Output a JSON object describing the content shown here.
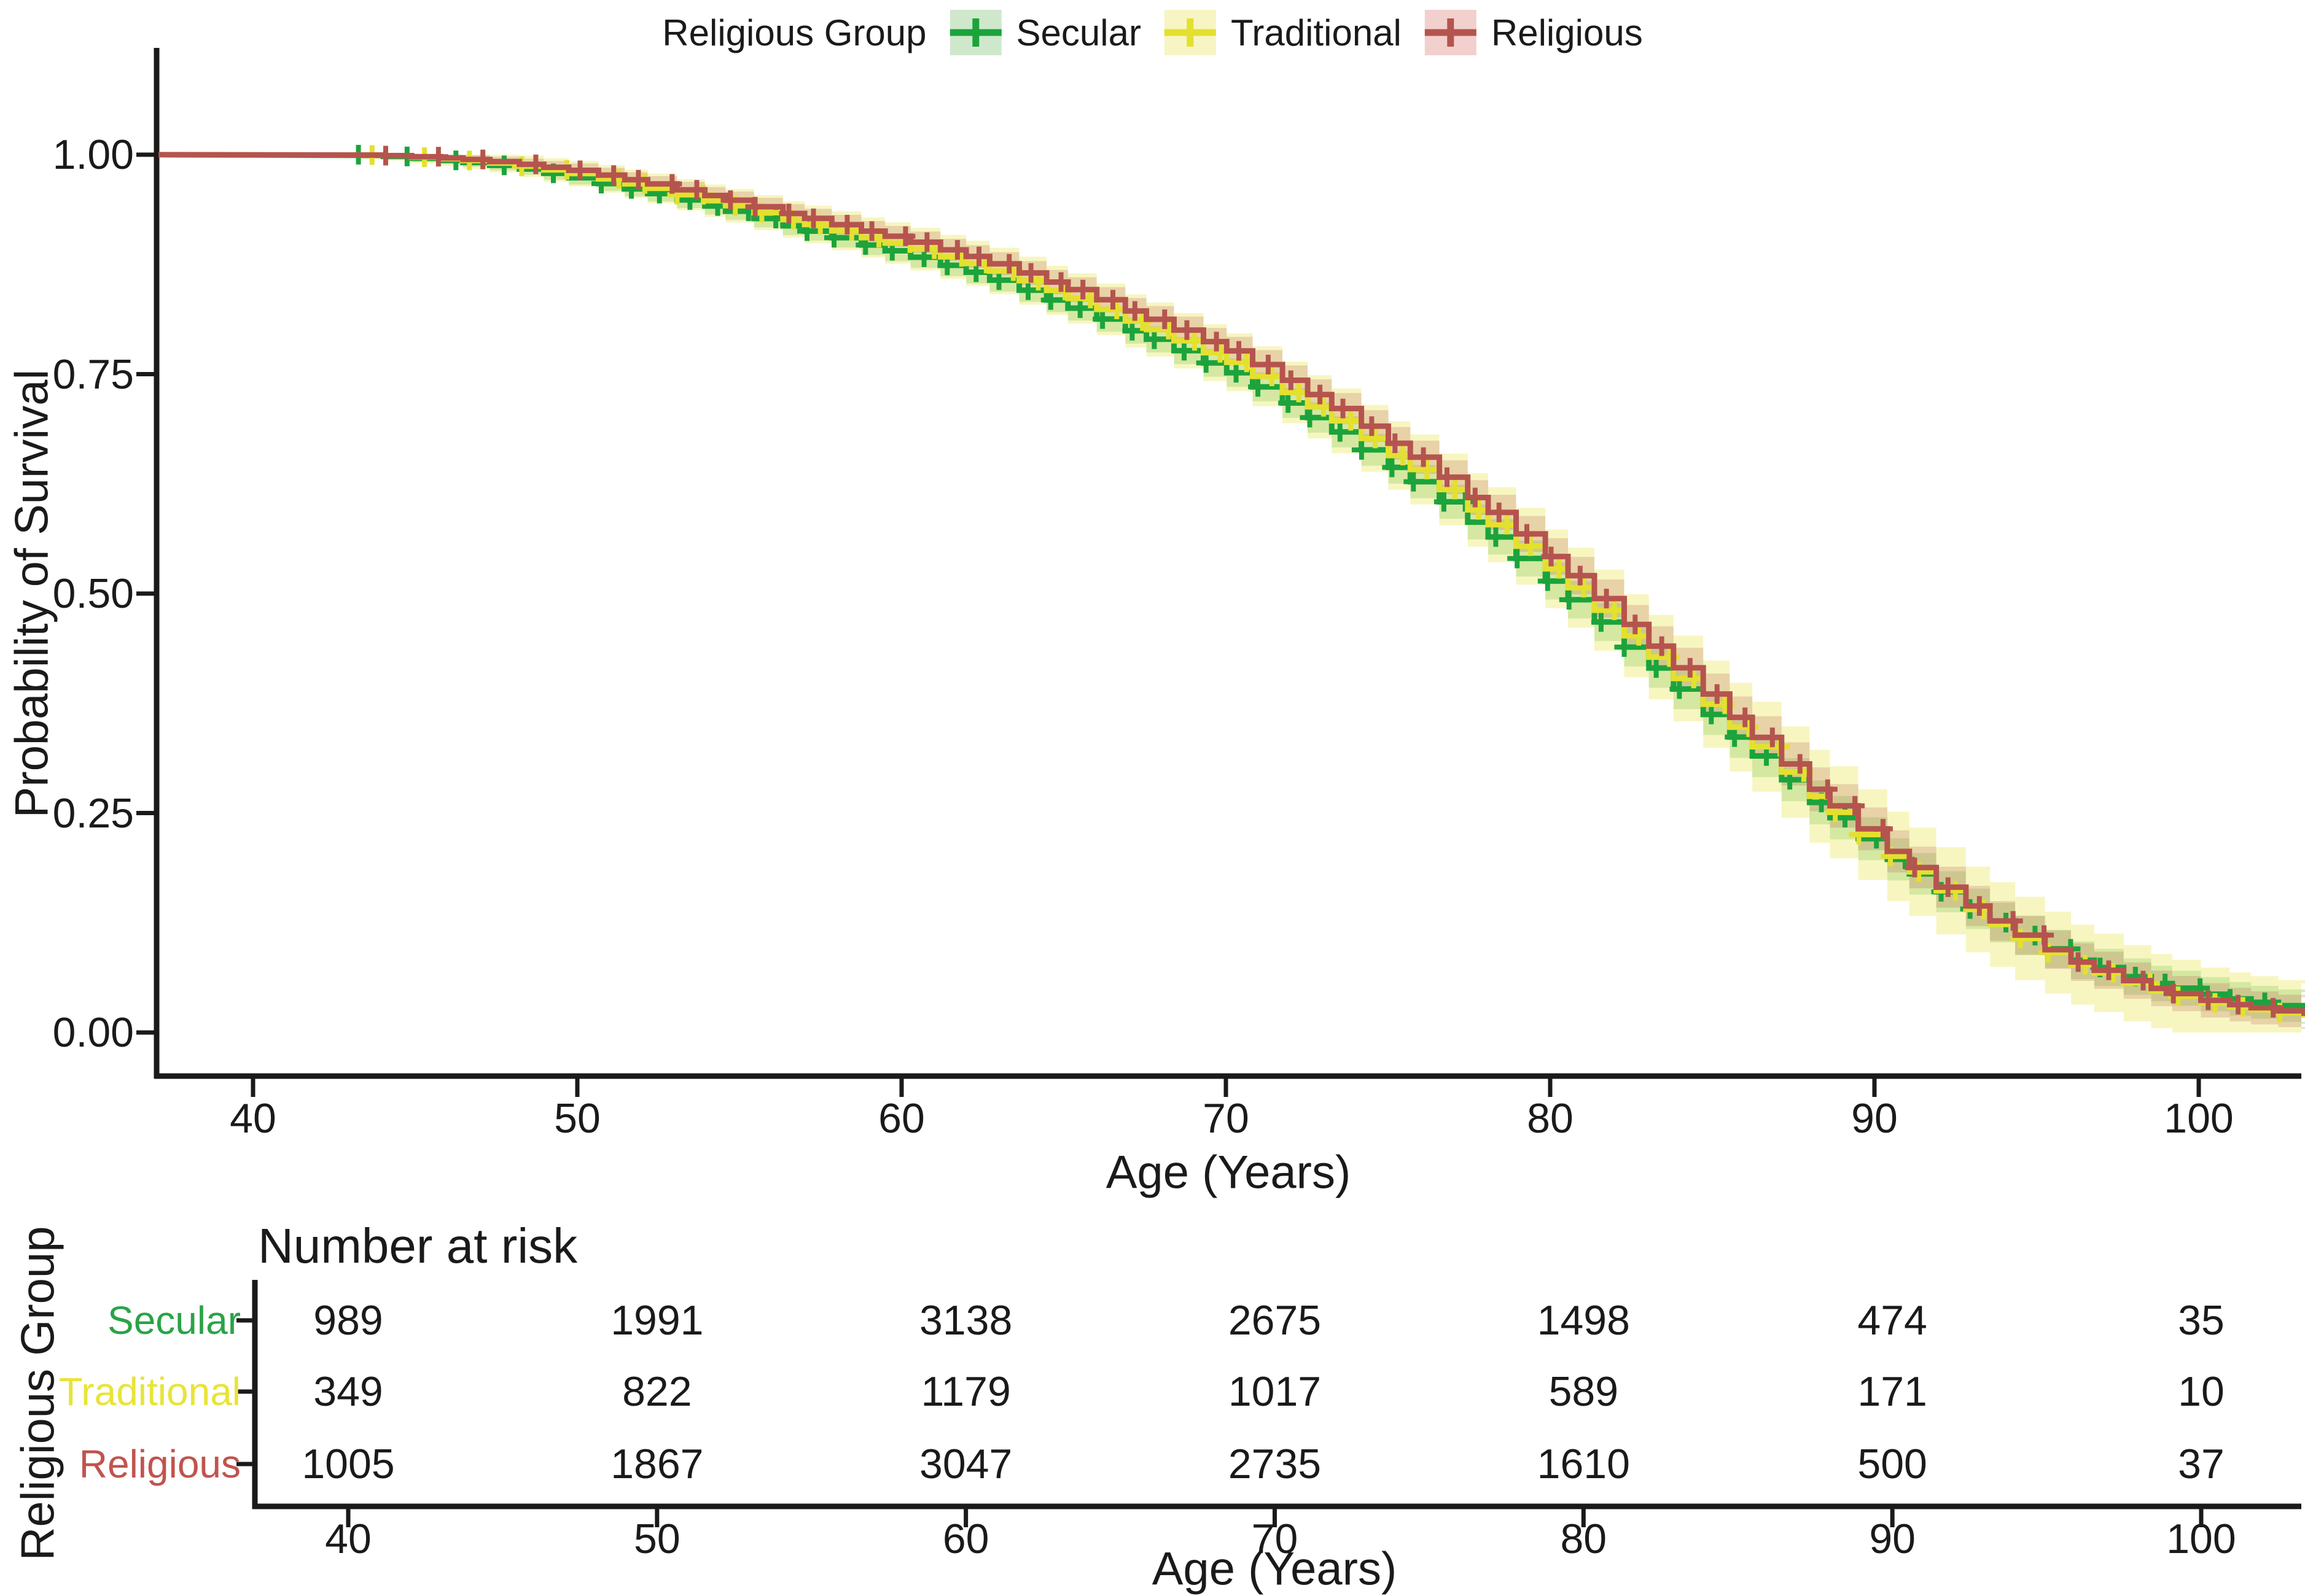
{
  "figure": {
    "background": "#ffffff",
    "text_color": "#1a1a1a"
  },
  "legend": {
    "title": "Religious Group",
    "items": [
      {
        "label": "Secular",
        "line_color": "#1ca33c",
        "fill_color": "#cfe8cc"
      },
      {
        "label": "Traditional",
        "line_color": "#e4e02f",
        "fill_color": "#f7f5c3"
      },
      {
        "label": "Religious",
        "line_color": "#b5544e",
        "fill_color": "#f2d0cd"
      }
    ]
  },
  "main_plot": {
    "y_axis": {
      "title": "Probability of Survival",
      "tick_labels": [
        "1.00",
        "0.75",
        "0.50",
        "0.25",
        "0.00"
      ]
    },
    "x_axis": {
      "title": "Age (Years)",
      "tick_labels": [
        "40",
        "50",
        "60",
        "70",
        "80",
        "90",
        "100"
      ]
    }
  },
  "risk_table": {
    "title": "Number at risk",
    "group_axis_title": "Religious Group",
    "x_axis": {
      "title": "Age (Years)",
      "tick_labels": [
        "40",
        "50",
        "60",
        "70",
        "80",
        "90",
        "100"
      ]
    },
    "rows": [
      {
        "label": "Secular",
        "label_color": "#2aa347",
        "values": [
          "989",
          "1991",
          "3138",
          "2675",
          "1498",
          "474",
          "35"
        ]
      },
      {
        "label": "Traditional",
        "label_color": "#e8e438",
        "values": [
          "349",
          "822",
          "1179",
          "1017",
          "589",
          "171",
          "10"
        ]
      },
      {
        "label": "Religious",
        "label_color": "#c0544e",
        "values": [
          "1005",
          "1867",
          "3047",
          "2735",
          "1610",
          "500",
          "37"
        ]
      }
    ]
  },
  "chart_data": {
    "type": "line",
    "subtype": "kaplan_meier_step_with_ci_and_censor_marks",
    "title": "",
    "xlabel": "Age (Years)",
    "ylabel": "Probability of Survival",
    "xlim": [
      37,
      103.5
    ],
    "ylim": [
      0,
      1
    ],
    "x_ticks": [
      40,
      50,
      60,
      70,
      80,
      90,
      100
    ],
    "y_ticks": [
      1.0,
      0.75,
      0.5,
      0.25,
      0.0
    ],
    "grid": false,
    "legend_position": "top",
    "legend_title": "Religious Group",
    "series": [
      {
        "name": "Secular",
        "color": "#1ca33c",
        "ci_color": "rgba(28,163,60,0.22)",
        "survival_points": [
          [
            40,
            1
          ],
          [
            43,
            1
          ],
          [
            44,
            0.998
          ],
          [
            46,
            0.993
          ],
          [
            48,
            0.985
          ],
          [
            50,
            0.972
          ],
          [
            52,
            0.957
          ],
          [
            54,
            0.941
          ],
          [
            56,
            0.922
          ],
          [
            58,
            0.904
          ],
          [
            60,
            0.886
          ],
          [
            62,
            0.866
          ],
          [
            64,
            0.841
          ],
          [
            66,
            0.813
          ],
          [
            68,
            0.783
          ],
          [
            70,
            0.752
          ],
          [
            72,
            0.712
          ],
          [
            74,
            0.668
          ],
          [
            76,
            0.62
          ],
          [
            78,
            0.567
          ],
          [
            80,
            0.51
          ],
          [
            82,
            0.448
          ],
          [
            84,
            0.385
          ],
          [
            86,
            0.322
          ],
          [
            88,
            0.262
          ],
          [
            90,
            0.207
          ],
          [
            92,
            0.158
          ],
          [
            94,
            0.116
          ],
          [
            96,
            0.083
          ],
          [
            98,
            0.06
          ],
          [
            100,
            0.044
          ],
          [
            102,
            0.032
          ],
          [
            103.3,
            0.028
          ]
        ],
        "ci_half_width": [
          [
            43,
            0.002
          ],
          [
            50,
            0.008
          ],
          [
            60,
            0.012
          ],
          [
            70,
            0.016
          ],
          [
            80,
            0.021
          ],
          [
            88,
            0.025
          ],
          [
            95,
            0.022
          ],
          [
            103.3,
            0.018
          ]
        ]
      },
      {
        "name": "Traditional",
        "color": "#e4e02f",
        "ci_color": "rgba(228,224,47,0.30)",
        "survival_points": [
          [
            40,
            1
          ],
          [
            43,
            1
          ],
          [
            44,
            0.999
          ],
          [
            46,
            0.995
          ],
          [
            48,
            0.988
          ],
          [
            50,
            0.977
          ],
          [
            52,
            0.963
          ],
          [
            54,
            0.947
          ],
          [
            56,
            0.929
          ],
          [
            58,
            0.912
          ],
          [
            60,
            0.895
          ],
          [
            62,
            0.876
          ],
          [
            64,
            0.852
          ],
          [
            66,
            0.824
          ],
          [
            68,
            0.794
          ],
          [
            70,
            0.764
          ],
          [
            72,
            0.724
          ],
          [
            74,
            0.681
          ],
          [
            76,
            0.634
          ],
          [
            78,
            0.581
          ],
          [
            80,
            0.524
          ],
          [
            82,
            0.461
          ],
          [
            84,
            0.397
          ],
          [
            86,
            0.333
          ],
          [
            88,
            0.269
          ],
          [
            90,
            0.211
          ],
          [
            92,
            0.159
          ],
          [
            94,
            0.113
          ],
          [
            96,
            0.078
          ],
          [
            98,
            0.052
          ],
          [
            100,
            0.034
          ],
          [
            102,
            0.024
          ],
          [
            103.3,
            0.02
          ]
        ],
        "ci_half_width": [
          [
            43,
            0.004
          ],
          [
            50,
            0.015
          ],
          [
            60,
            0.024
          ],
          [
            70,
            0.033
          ],
          [
            80,
            0.045
          ],
          [
            88,
            0.053
          ],
          [
            95,
            0.047
          ],
          [
            103.3,
            0.036
          ]
        ]
      },
      {
        "name": "Religious",
        "color": "#b5544e",
        "ci_color": "rgba(181,84,78,0.22)",
        "survival_points": [
          [
            40,
            1
          ],
          [
            43,
            1
          ],
          [
            44,
            0.999
          ],
          [
            46,
            0.996
          ],
          [
            48,
            0.99
          ],
          [
            50,
            0.981
          ],
          [
            52,
            0.968
          ],
          [
            54,
            0.953
          ],
          [
            56,
            0.936
          ],
          [
            58,
            0.919
          ],
          [
            60,
            0.903
          ],
          [
            62,
            0.884
          ],
          [
            64,
            0.861
          ],
          [
            66,
            0.835
          ],
          [
            68,
            0.806
          ],
          [
            70,
            0.777
          ],
          [
            72,
            0.738
          ],
          [
            74,
            0.695
          ],
          [
            76,
            0.648
          ],
          [
            78,
            0.595
          ],
          [
            80,
            0.538
          ],
          [
            82,
            0.474
          ],
          [
            84,
            0.409
          ],
          [
            86,
            0.344
          ],
          [
            88,
            0.277
          ],
          [
            90,
            0.217
          ],
          [
            92,
            0.163
          ],
          [
            94,
            0.117
          ],
          [
            96,
            0.081
          ],
          [
            98,
            0.055
          ],
          [
            100,
            0.037
          ],
          [
            102,
            0.026
          ],
          [
            103.3,
            0.022
          ]
        ],
        "ci_half_width": [
          [
            43,
            0.002
          ],
          [
            50,
            0.008
          ],
          [
            60,
            0.012
          ],
          [
            70,
            0.016
          ],
          [
            80,
            0.021
          ],
          [
            88,
            0.025
          ],
          [
            95,
            0.022
          ],
          [
            103.3,
            0.018
          ]
        ]
      }
    ],
    "number_at_risk": {
      "ages": [
        40,
        50,
        60,
        70,
        80,
        90,
        100
      ],
      "Secular": [
        989,
        1991,
        3138,
        2675,
        1498,
        474,
        35
      ],
      "Traditional": [
        349,
        822,
        1179,
        1017,
        589,
        171,
        10
      ],
      "Religious": [
        1005,
        1867,
        3047,
        2735,
        1610,
        500,
        37
      ]
    }
  }
}
